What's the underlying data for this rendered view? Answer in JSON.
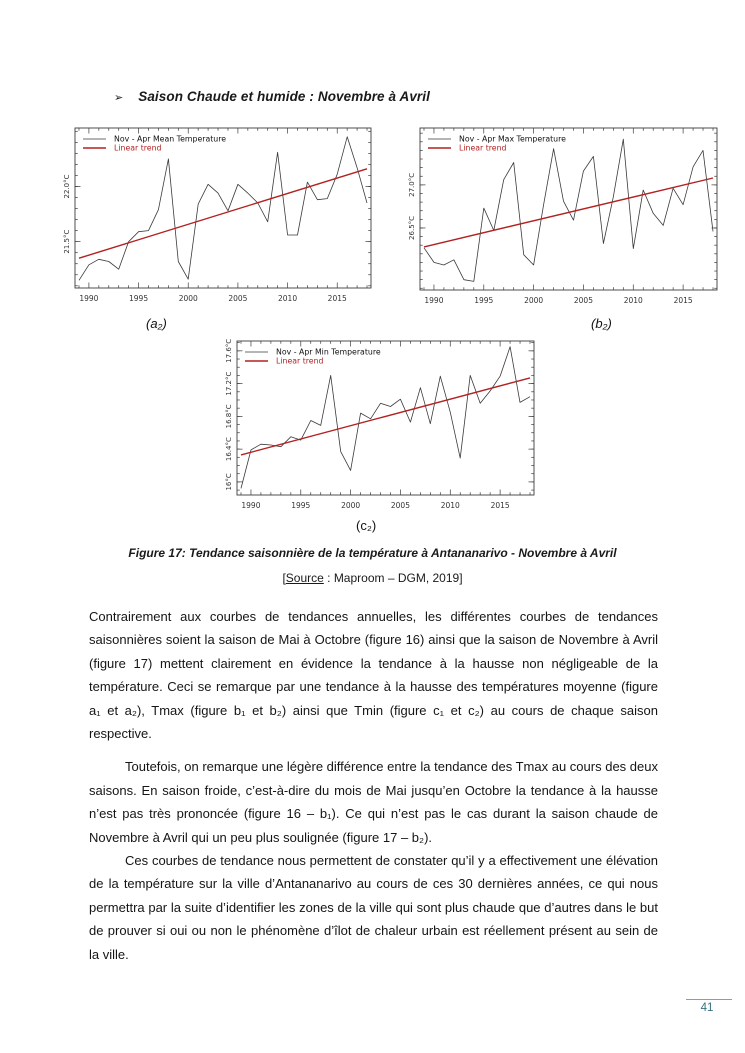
{
  "page": {
    "heading_bullet": "➢",
    "heading": "Saison Chaude et humide : Novembre à Avril",
    "caption": "Figure 17: Tendance saisonnière de la température à Antananarivo - Novembre à Avril",
    "source": {
      "prefix": "[",
      "underlined": "Source",
      "suffix": " : Maproom – DGM, 2019]"
    },
    "paragraphs": [
      "Contrairement aux courbes de tendances annuelles, les différentes courbes de tendances saisonnières soient la saison de Mai à Octobre (figure 16) ainsi que la saison de Novembre à Avril (figure 17) mettent clairement en évidence la tendance à la hausse non négligeable de la température. Ceci se remarque par une tendance à la hausse des températures moyenne (figure a₁ et a₂), Tmax (figure b₁ et b₂) ainsi que Tmin (figure c₁ et c₂) au cours de chaque saison respective.",
      "Toutefois, on remarque une légère différence entre la tendance des Tmax au cours des deux saisons. En saison froide, c’est-à-dire du mois de Mai jusqu’en Octobre la tendance à la hausse n’est pas très prononcée (figure 16 – b₁). Ce qui n’est pas le cas durant la saison chaude de Novembre à Avril qui un peu plus soulignée (figure 17 – b₂).",
      "Ces courbes de tendance nous permettent de constater qu’il y a effectivement une élévation de la température sur la ville d’Antananarivo au cours de ces 30 dernières années, ce qui nous permettra par la suite d’identifier les zones de la ville qui sont plus chaude que d’autres dans le but de prouver si oui ou non le phénomène d’îlot de chaleur urbain est réellement présent au sein de la ville.",
      ""
    ],
    "page_number": "41",
    "page_number_color": "#35707e"
  },
  "chart_data": [
    {
      "id": "a2",
      "type": "line",
      "label": "(a₂)",
      "x": [
        1989,
        1990,
        1991,
        1992,
        1993,
        1994,
        1995,
        1996,
        1997,
        1998,
        1999,
        2000,
        2001,
        2002,
        2003,
        2004,
        2005,
        2006,
        2007,
        2008,
        2009,
        2010,
        2011,
        2012,
        2013,
        2014,
        2015,
        2016,
        2017,
        2018
      ],
      "series": [
        {
          "name": "Nov - Apr Mean Temperature",
          "color": "#3a3a3a",
          "values": [
            21.15,
            21.29,
            21.34,
            21.32,
            21.25,
            21.5,
            21.59,
            21.6,
            21.79,
            22.25,
            21.32,
            21.16,
            21.84,
            22.02,
            21.94,
            21.78,
            22.02,
            21.94,
            21.85,
            21.68,
            22.31,
            21.56,
            21.56,
            22.04,
            21.88,
            21.89,
            22.11,
            22.45,
            22.17,
            21.85
          ]
        },
        {
          "name": "Linear trend",
          "color": "#b22222",
          "trend": [
            21.35,
            22.16
          ]
        }
      ],
      "xticks": [
        1990,
        1995,
        2000,
        2005,
        2010,
        2015
      ],
      "yticks": [
        {
          "v": 21.5,
          "label": "21.5°C"
        },
        {
          "v": 22.0,
          "label": "22.0°C"
        }
      ],
      "xlim": [
        1988.6,
        2018.4
      ],
      "ylim": [
        21.08,
        22.53
      ],
      "yminor": 0.1,
      "legend_position": "top-left",
      "grid": false
    },
    {
      "id": "b2",
      "type": "line",
      "label": "(b₂)",
      "x": [
        1989,
        1990,
        1991,
        1992,
        1993,
        1994,
        1995,
        1996,
        1997,
        1998,
        1999,
        2000,
        2001,
        2002,
        2003,
        2004,
        2005,
        2006,
        2007,
        2008,
        2009,
        2010,
        2011,
        2012,
        2013,
        2014,
        2015,
        2016,
        2017,
        2018
      ],
      "series": [
        {
          "name": "Nov - Apr Max Temperature",
          "color": "#3a3a3a",
          "values": [
            26.27,
            26.1,
            26.07,
            26.13,
            25.9,
            25.88,
            26.73,
            26.47,
            27.06,
            27.26,
            26.19,
            26.07,
            26.77,
            27.42,
            26.81,
            26.59,
            27.16,
            27.33,
            26.32,
            26.86,
            27.53,
            26.26,
            26.94,
            26.67,
            26.53,
            26.96,
            26.77,
            27.21,
            27.4,
            26.46
          ]
        },
        {
          "name": "Linear trend",
          "color": "#b22222",
          "trend": [
            26.28,
            27.08
          ]
        }
      ],
      "xticks": [
        1990,
        1995,
        2000,
        2005,
        2010,
        2015
      ],
      "yticks": [
        {
          "v": 26.5,
          "label": "26.5°C"
        },
        {
          "v": 27.0,
          "label": "27.0°C"
        }
      ],
      "xlim": [
        1988.6,
        2018.4
      ],
      "ylim": [
        25.78,
        27.66
      ],
      "yminor": 0.1,
      "legend_position": "top-left",
      "grid": false
    },
    {
      "id": "c2",
      "type": "line",
      "label": "(c₂)",
      "x": [
        1989,
        1990,
        1991,
        1992,
        1993,
        1994,
        1995,
        1996,
        1997,
        1998,
        1999,
        2000,
        2001,
        2002,
        2003,
        2004,
        2005,
        2006,
        2007,
        2008,
        2009,
        2010,
        2011,
        2012,
        2013,
        2014,
        2015,
        2016,
        2017,
        2018
      ],
      "series": [
        {
          "name": "Nov - Apr Min Temperature",
          "color": "#3a3a3a",
          "values": [
            15.92,
            16.39,
            16.46,
            16.45,
            16.43,
            16.55,
            16.51,
            16.75,
            16.69,
            17.3,
            16.37,
            16.14,
            16.84,
            16.77,
            16.96,
            16.92,
            17.01,
            16.73,
            17.15,
            16.71,
            17.29,
            16.85,
            16.29,
            17.3,
            16.96,
            17.11,
            17.29,
            17.65,
            16.97,
            17.04
          ]
        },
        {
          "name": "Linear trend",
          "color": "#b22222",
          "trend": [
            16.33,
            17.27
          ]
        }
      ],
      "xticks": [
        1990,
        1995,
        2000,
        2005,
        2010,
        2015
      ],
      "yticks": [
        {
          "v": 16.0,
          "label": "16°C"
        },
        {
          "v": 16.4,
          "label": "16.4°C"
        },
        {
          "v": 16.8,
          "label": "16.8°C"
        },
        {
          "v": 17.2,
          "label": "17.2°C"
        },
        {
          "v": 17.6,
          "label": "17.6°C"
        }
      ],
      "xlim": [
        1988.6,
        2018.4
      ],
      "ylim": [
        15.84,
        17.72
      ],
      "yminor": 0.1,
      "legend_position": "top-left",
      "grid": false
    }
  ]
}
